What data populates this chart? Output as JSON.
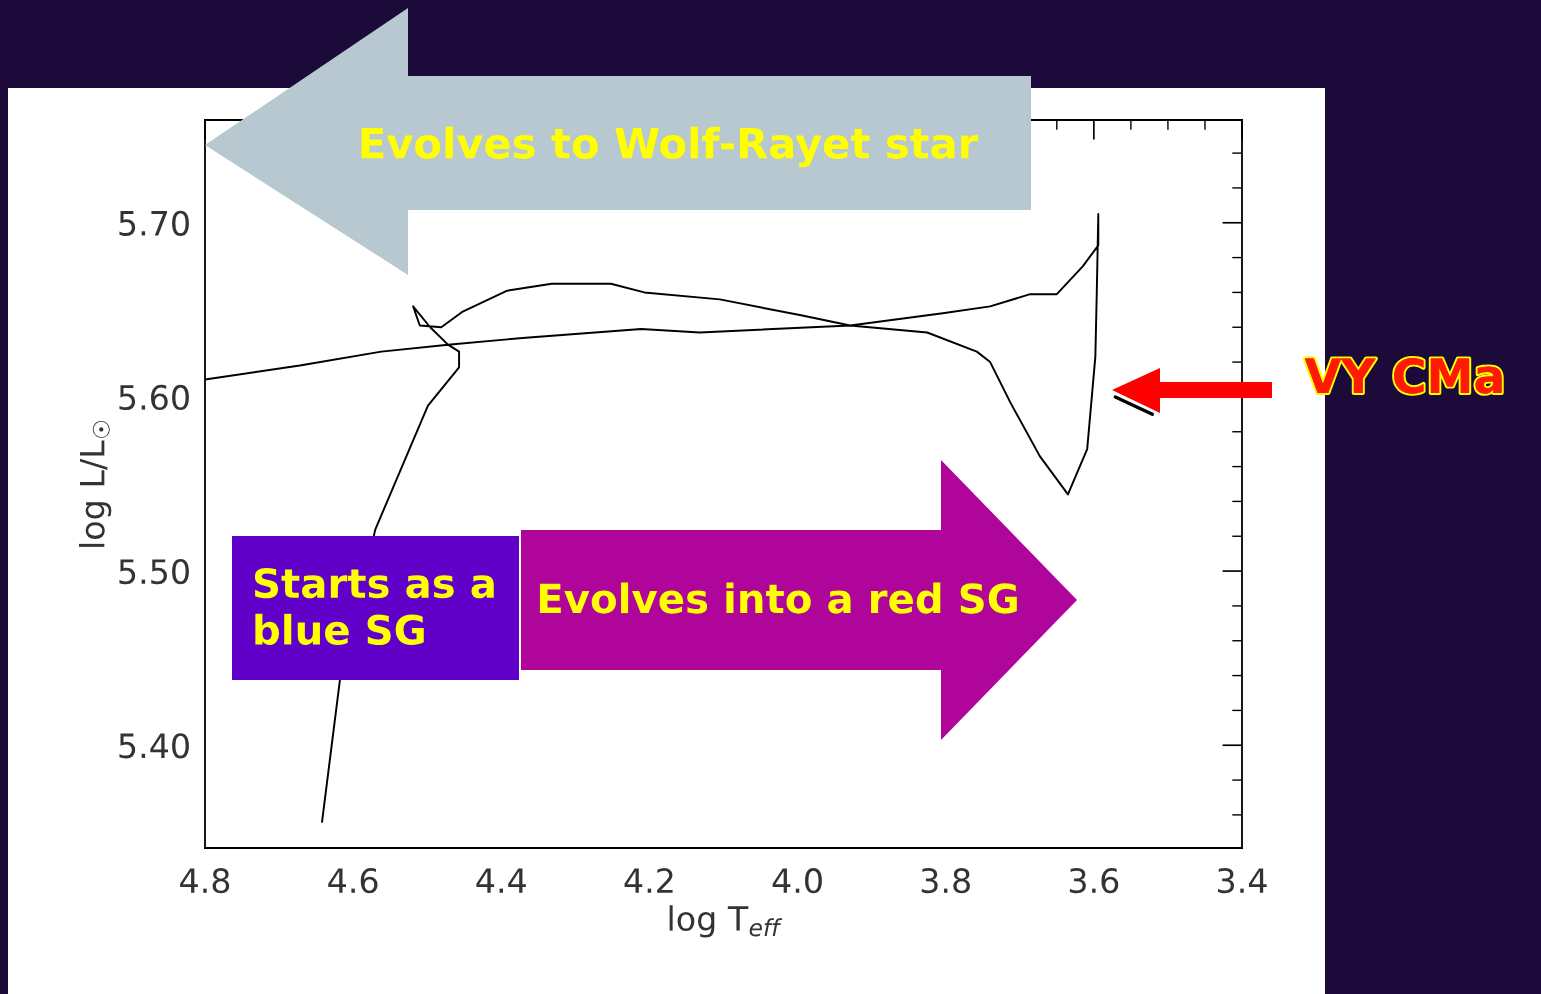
{
  "chart_data": {
    "type": "line",
    "xlabel": "log T$_{eff}$",
    "ylabel": "log L/L$_{☉}$",
    "xlim": [
      4.8,
      3.4
    ],
    "ylim": [
      5.341,
      5.759
    ],
    "xticks": [
      4.8,
      4.6,
      4.4,
      4.2,
      {
        "value": 4.0,
        "label": "4.0"
      },
      3.8,
      3.6,
      3.4
    ],
    "yticks": [
      {
        "value": 5.4,
        "label": "5.40"
      },
      {
        "value": 5.5,
        "label": "5.50"
      },
      {
        "value": 5.6,
        "label": "5.60"
      },
      {
        "value": 5.7,
        "label": "5.70"
      }
    ],
    "grid": false,
    "legend": false,
    "marker": "none",
    "line_style": "solid",
    "series": [
      {
        "color": "#000000",
        "x": [
          4.642,
          4.618,
          4.57,
          4.522,
          4.499,
          4.457,
          4.457,
          4.472,
          4.496,
          4.519,
          4.51,
          4.481,
          4.452,
          4.392,
          4.332,
          4.252,
          4.207,
          4.105,
          3.997,
          3.929,
          3.825,
          3.758,
          3.74,
          3.713,
          3.673,
          3.635,
          3.609,
          3.598,
          3.596,
          3.594,
          3.594,
          3.615,
          3.65,
          3.686,
          3.74,
          3.804,
          3.929,
          4.132,
          4.211,
          4.367,
          4.472,
          4.562,
          4.672,
          4.8
        ],
        "values": [
          5.356,
          5.437,
          5.524,
          5.572,
          5.595,
          5.617,
          5.626,
          5.63,
          5.64,
          5.652,
          5.641,
          5.64,
          5.649,
          5.661,
          5.665,
          5.665,
          5.66,
          5.656,
          5.647,
          5.641,
          5.637,
          5.626,
          5.62,
          5.597,
          5.566,
          5.544,
          5.57,
          5.623,
          5.661,
          5.705,
          5.687,
          5.675,
          5.659,
          5.659,
          5.652,
          5.648,
          5.641,
          5.637,
          5.639,
          5.634,
          5.63,
          5.626,
          5.618,
          5.61
        ]
      },
      {
        "color": "#000000",
        "x": [
          3.571,
          3.521
        ],
        "values": [
          5.6,
          5.59
        ]
      }
    ],
    "annotations": [
      "Evolves to Wolf-Rayet star",
      "Starts as a\nblue SG",
      "Evolves into a red SG",
      "VY CMa"
    ]
  }
}
